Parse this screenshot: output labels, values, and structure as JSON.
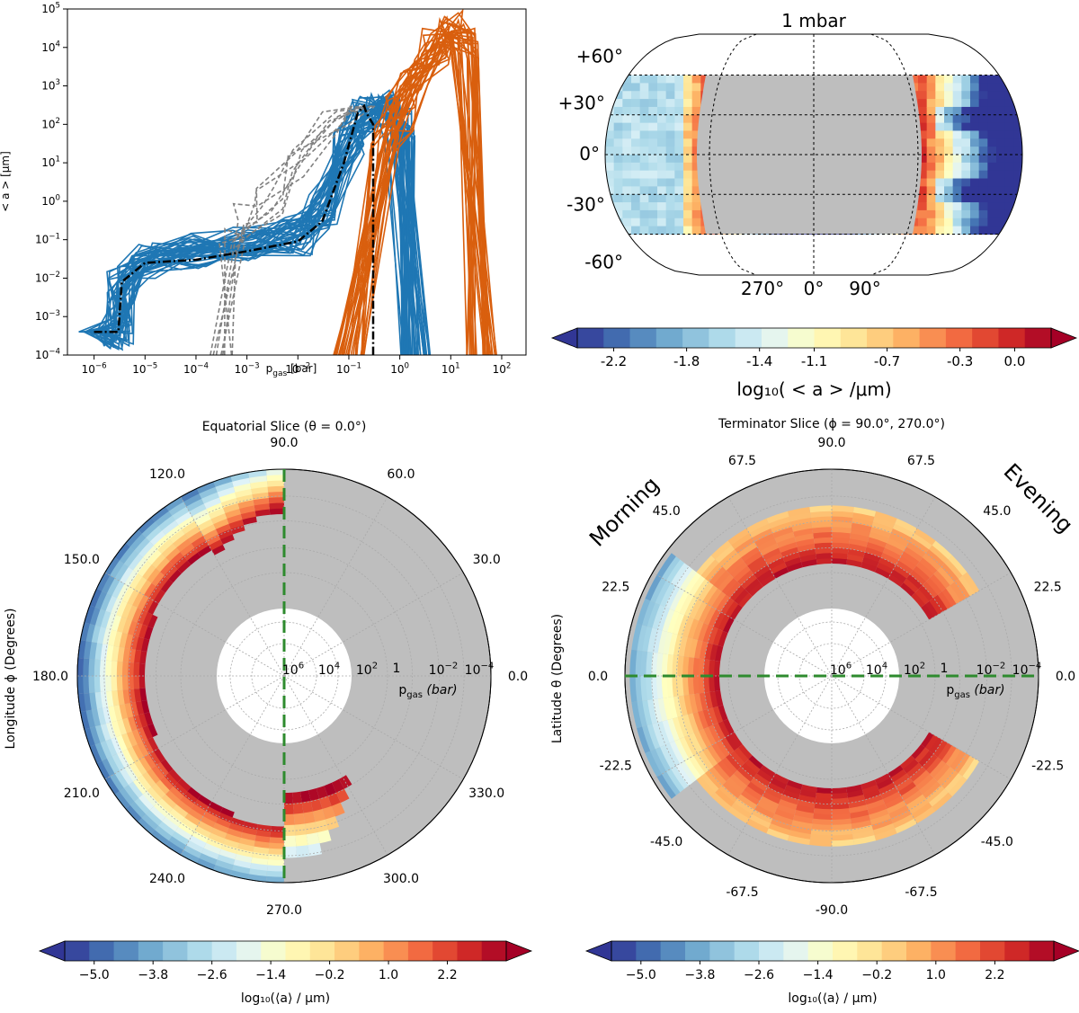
{
  "chart_data": [
    {
      "type": "line",
      "xlabel": "p",
      "xlabel_sub": "gas",
      "xlabel_unit": " [bar]",
      "ylabel": "< a > [μm]",
      "x_scale": "log",
      "y_scale": "log",
      "xlim": [
        3e-07,
        300
      ],
      "ylim": [
        0.0001,
        100000
      ],
      "xticks": [
        {
          "b": "10",
          "e": "−6"
        },
        {
          "b": "10",
          "e": "−5"
        },
        {
          "b": "10",
          "e": "−4"
        },
        {
          "b": "10",
          "e": "−3"
        },
        {
          "b": "10",
          "e": "−2"
        },
        {
          "b": "10",
          "e": "−1"
        },
        {
          "b": "10",
          "e": "0"
        },
        {
          "b": "10",
          "e": "1"
        },
        {
          "b": "10",
          "e": "2"
        }
      ],
      "yticks": [
        {
          "b": "10",
          "e": "−4"
        },
        {
          "b": "10",
          "e": "−3"
        },
        {
          "b": "10",
          "e": "−2"
        },
        {
          "b": "10",
          "e": "−1"
        },
        {
          "b": "10",
          "e": "0"
        },
        {
          "b": "10",
          "e": "1"
        },
        {
          "b": "10",
          "e": "2"
        },
        {
          "b": "10",
          "e": "3"
        },
        {
          "b": "10",
          "e": "4"
        },
        {
          "b": "10",
          "e": "5"
        }
      ],
      "colors": {
        "blue": "#1f77b4",
        "orange": "#d95f0e",
        "gray": "#808080",
        "mean": "#000000"
      },
      "series": [
        {
          "color": "blue",
          "count": 40,
          "x": [
            1e-06,
            3e-06,
            3.5e-06,
            1e-05,
            0.0001,
            0.001,
            0.01,
            0.03,
            0.1,
            0.2,
            0.5,
            1,
            2
          ],
          "y": [
            0.0004,
            0.0004,
            0.007,
            0.03,
            0.05,
            0.07,
            0.12,
            0.5,
            30,
            200,
            300,
            100,
            0.0001
          ]
        },
        {
          "color": "orange",
          "count": 30,
          "x": [
            0.1,
            0.5,
            1,
            2,
            5,
            10,
            20,
            40
          ],
          "y": [
            0.0001,
            30,
            200,
            2000,
            10000,
            30000,
            10000,
            0.0001
          ]
        },
        {
          "color": "gray",
          "style": "dashed",
          "count": 8,
          "x": [
            0.0003,
            0.0005,
            0.001,
            0.003,
            0.01,
            0.05,
            0.2
          ],
          "y": [
            0.0001,
            0.1,
            0.3,
            1,
            10,
            100,
            300
          ]
        },
        {
          "color": "mean",
          "style": "dashdot",
          "name_text": "",
          "x": [
            1e-06,
            3e-06,
            3.5e-06,
            1e-05,
            0.0001,
            0.001,
            0.01,
            0.03,
            0.08,
            0.15,
            0.2,
            0.22,
            0.3,
            0.3
          ],
          "y": [
            0.0004,
            0.0004,
            0.008,
            0.025,
            0.03,
            0.05,
            0.09,
            0.3,
            10,
            200,
            300,
            200,
            100,
            0.0001
          ]
        }
      ]
    },
    {
      "type": "heatmap",
      "projection": "robinson",
      "title": "1 mbar",
      "lat_labels": [
        "+60°",
        "+30°",
        "0°",
        "-30°",
        "-60°"
      ],
      "lon_labels": [
        "270°",
        "0°",
        "90°"
      ],
      "colorbar": {
        "label": "log₁₀( < a > /μm)",
        "min": -2.4,
        "max": 0.2,
        "ticks": [
          "-2.2",
          "-1.8",
          "-1.4",
          "-1.1",
          "-0.7",
          "-0.3",
          "0.0"
        ],
        "tick_values": [
          -2.2,
          -1.8,
          -1.4,
          -1.1,
          -0.7,
          -0.3,
          0.0
        ],
        "extend": "both"
      },
      "masked_region": "dayside (gray)"
    },
    {
      "type": "heatmap",
      "projection": "polar",
      "title": "Equatorial Slice (θ  =  0.0°)",
      "theta_label": "Longitude ϕ (Degrees)",
      "angle_labels": [
        "0.0",
        "30.0",
        "60.0",
        "90.0",
        "120.0",
        "150.0",
        "180.0",
        "210.0",
        "240.0",
        "270.0",
        "300.0",
        "330.0"
      ],
      "radial_labels": [
        {
          "b": "10",
          "e": "6"
        },
        {
          "b": "10",
          "e": "4"
        },
        {
          "b": "10",
          "e": "2"
        },
        {
          "b": "1",
          "e": ""
        },
        {
          "b": "10",
          "e": "−2"
        },
        {
          "b": "10",
          "e": "−4"
        }
      ],
      "radial_axis_label": "p",
      "radial_axis_label_sub": "gas",
      "radial_axis_unit": "(bar)",
      "colorbar": {
        "label": "log₁₀(⟨a⟩ / μm)",
        "min": -5.6,
        "max": 3.4,
        "ticks": [
          "−5.0",
          "−3.8",
          "−2.6",
          "−1.4",
          "−0.2",
          "1.0",
          "2.2"
        ],
        "tick_values": [
          -5.0,
          -3.8,
          -2.6,
          -1.4,
          -0.2,
          1.0,
          2.2
        ],
        "extend": "both"
      }
    },
    {
      "type": "heatmap",
      "projection": "polar",
      "title": "Terminator Slice (ϕ  =  90.0°, 270.0°)",
      "theta_label": "Latitude θ (Degrees)",
      "side_labels": [
        "Morning",
        "Evening"
      ],
      "angle_labels_left": [
        "90.0",
        "67.5",
        "45.0",
        "22.5",
        "0.0",
        "-22.5",
        "-45.0",
        "-67.5",
        "-90.0"
      ],
      "angle_labels_right": [
        "67.5",
        "45.0",
        "22.5",
        "0.0",
        "-22.5",
        "-45.0",
        "-67.5"
      ],
      "radial_labels": [
        {
          "b": "10",
          "e": "6"
        },
        {
          "b": "10",
          "e": "4"
        },
        {
          "b": "10",
          "e": "2"
        },
        {
          "b": "1",
          "e": ""
        },
        {
          "b": "10",
          "e": "−2"
        },
        {
          "b": "10",
          "e": "−4"
        }
      ],
      "radial_axis_label": "p",
      "radial_axis_label_sub": "gas",
      "radial_axis_unit": "(bar)",
      "colorbar": {
        "label": "log₁₀(⟨a⟩ / μm)",
        "min": -5.6,
        "max": 3.4,
        "ticks": [
          "−5.0",
          "−3.8",
          "−2.6",
          "−1.4",
          "−0.2",
          "1.0",
          "2.2"
        ],
        "tick_values": [
          -5.0,
          -3.8,
          -2.6,
          -1.4,
          -0.2,
          1.0,
          2.2
        ],
        "extend": "both"
      }
    }
  ],
  "palette": [
    "#313695",
    "#4575b4",
    "#74add1",
    "#abd9e9",
    "#e0f3f8",
    "#ffffbf",
    "#fee090",
    "#fdae61",
    "#f46d43",
    "#d73027",
    "#a50026"
  ],
  "mask_color": "#bebebe",
  "guide_color": "#2e8b2e"
}
